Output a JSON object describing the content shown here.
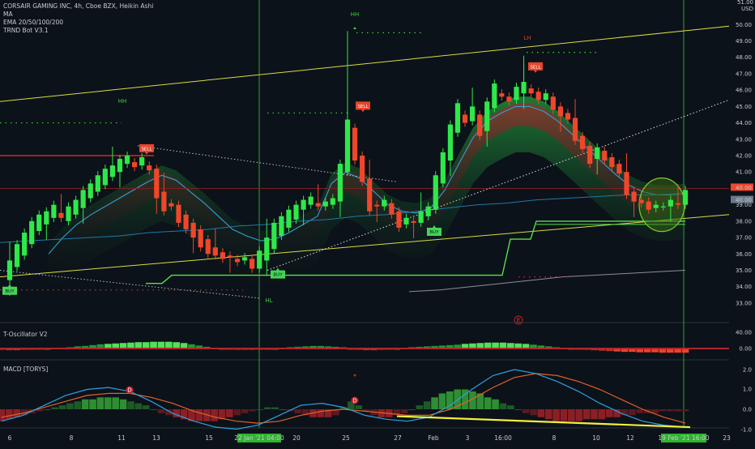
{
  "header": {
    "symbol_line": "CORSAIR GAMING INC, 4h, Cboe BZX, Heikin Ashi",
    "indicators": [
      "MA",
      "EMA 20/50/100/200",
      "TRND Bot V3.1"
    ]
  },
  "axis": {
    "currency": "USD",
    "y_top": "51.00"
  },
  "panes": {
    "oscillator_title": "T-Oscillator V2",
    "macd_title": "MACD [TORYS]"
  },
  "markers": {
    "hh_left": "HH",
    "hh_mid": "HH",
    "lh": "LH",
    "hl": "HL",
    "e_marker": "E",
    "d_left": "D",
    "d_mid": "D",
    "sell": "SELL",
    "buy": "BUY"
  },
  "date_flags": {
    "left": "22 Jan '21 04:00",
    "right": "19 Feb '21 16:00"
  },
  "price_flags": {
    "upper": "40.00",
    "lower": "40.00"
  },
  "colors": {
    "background": "#0c1219",
    "bull": "#2ee84a",
    "bear": "#f0462a",
    "ema_fast": "#29a3d9",
    "trend_line": "#d8dc45",
    "support_green": "#58e04a",
    "ribbon_red": "#c4202c",
    "ribbon_green": "#24b63c"
  },
  "chart_data": [
    {
      "type": "candlestick",
      "title": "CORSAIR GAMING INC, 4h, Cboe BZX, Heikin Ashi",
      "y_ticks": [
        "51.00",
        "50.00",
        "49.00",
        "48.00",
        "47.00",
        "46.00",
        "45.00",
        "44.00",
        "43.00",
        "42.00",
        "41.00",
        "40.00",
        "39.00",
        "38.00",
        "37.00",
        "36.00",
        "35.00",
        "34.00",
        "33.00"
      ],
      "ylim": [
        32.8,
        51.3
      ],
      "x_ticks": [
        "6",
        "8",
        "11",
        "13",
        "15",
        "18",
        "20",
        "22 Jan '21 04:00",
        "25",
        "27",
        "Feb",
        "3",
        "16:00",
        "8",
        "10",
        "12",
        "17",
        "19 Feb '21 16:00",
        "23"
      ],
      "candles": [
        {
          "o": 34.4,
          "c": 35.6
        },
        {
          "o": 35.2,
          "c": 36.6
        },
        {
          "o": 35.9,
          "c": 37.3
        },
        {
          "o": 36.6,
          "c": 38.0
        },
        {
          "o": 37.4,
          "c": 38.4
        },
        {
          "o": 37.8,
          "c": 38.6
        },
        {
          "o": 38.2,
          "c": 39.0
        },
        {
          "o": 38.5,
          "c": 38.2
        },
        {
          "o": 38.0,
          "c": 38.9
        },
        {
          "o": 38.4,
          "c": 39.3
        },
        {
          "o": 38.8,
          "c": 39.9
        },
        {
          "o": 39.4,
          "c": 40.3
        },
        {
          "o": 39.8,
          "c": 40.8
        },
        {
          "o": 40.2,
          "c": 41.2
        },
        {
          "o": 40.7,
          "c": 41.4
        },
        {
          "o": 41.0,
          "c": 41.8
        },
        {
          "o": 41.5,
          "c": 42.0
        },
        {
          "o": 41.6,
          "c": 41.3
        },
        {
          "o": 41.4,
          "c": 41.9
        },
        {
          "o": 41.4,
          "c": 41.1
        },
        {
          "o": 41.2,
          "c": 39.4
        },
        {
          "o": 39.8,
          "c": 38.6
        },
        {
          "o": 39.1,
          "c": 38.9
        },
        {
          "o": 39.0,
          "c": 37.9
        },
        {
          "o": 38.4,
          "c": 37.5
        },
        {
          "o": 37.9,
          "c": 37.0
        },
        {
          "o": 37.5,
          "c": 36.4
        },
        {
          "o": 36.9,
          "c": 36.0
        },
        {
          "o": 36.4,
          "c": 35.9
        },
        {
          "o": 36.1,
          "c": 35.7
        },
        {
          "o": 35.9,
          "c": 35.8
        },
        {
          "o": 35.7,
          "c": 35.5
        },
        {
          "o": 35.6,
          "c": 35.8
        },
        {
          "o": 35.7,
          "c": 35.1
        },
        {
          "o": 35.1,
          "c": 36.2
        },
        {
          "o": 35.6,
          "c": 37.0
        },
        {
          "o": 36.3,
          "c": 37.9
        },
        {
          "o": 37.1,
          "c": 38.3
        },
        {
          "o": 37.6,
          "c": 38.7
        },
        {
          "o": 38.1,
          "c": 39.0
        },
        {
          "o": 38.7,
          "c": 39.3
        },
        {
          "o": 39.0,
          "c": 39.5
        },
        {
          "o": 39.1,
          "c": 38.9
        },
        {
          "o": 38.9,
          "c": 39.2
        },
        {
          "o": 39.0,
          "c": 39.4
        },
        {
          "o": 39.2,
          "c": 41.5
        },
        {
          "o": 41.0,
          "c": 44.2
        },
        {
          "o": 43.7,
          "c": 41.7
        },
        {
          "o": 42.0,
          "c": 40.4
        },
        {
          "o": 40.6,
          "c": 38.6
        },
        {
          "o": 39.0,
          "c": 38.9
        },
        {
          "o": 38.9,
          "c": 39.3
        },
        {
          "o": 39.1,
          "c": 38.4
        },
        {
          "o": 38.6,
          "c": 37.6
        },
        {
          "o": 37.8,
          "c": 38.2
        },
        {
          "o": 38.0,
          "c": 37.9
        },
        {
          "o": 37.9,
          "c": 38.6
        },
        {
          "o": 38.3,
          "c": 38.9
        },
        {
          "o": 38.7,
          "c": 40.8
        },
        {
          "o": 40.3,
          "c": 42.2
        },
        {
          "o": 41.7,
          "c": 43.9
        },
        {
          "o": 43.4,
          "c": 45.2
        },
        {
          "o": 44.5,
          "c": 44.0
        },
        {
          "o": 44.1,
          "c": 45.0
        },
        {
          "o": 44.5,
          "c": 43.2
        },
        {
          "o": 43.5,
          "c": 45.3
        },
        {
          "o": 44.9,
          "c": 46.4
        },
        {
          "o": 45.8,
          "c": 45.6
        },
        {
          "o": 45.6,
          "c": 45.3
        },
        {
          "o": 45.4,
          "c": 46.2
        },
        {
          "o": 45.8,
          "c": 46.5
        },
        {
          "o": 46.1,
          "c": 45.8
        },
        {
          "o": 45.9,
          "c": 45.4
        },
        {
          "o": 45.4,
          "c": 45.8
        },
        {
          "o": 45.6,
          "c": 44.8
        },
        {
          "o": 45.0,
          "c": 44.4
        },
        {
          "o": 44.6,
          "c": 44.2
        },
        {
          "o": 44.3,
          "c": 42.9
        },
        {
          "o": 43.2,
          "c": 42.4
        },
        {
          "o": 42.6,
          "c": 41.5
        },
        {
          "o": 41.8,
          "c": 42.5
        },
        {
          "o": 42.3,
          "c": 41.7
        },
        {
          "o": 41.9,
          "c": 41.3
        },
        {
          "o": 41.5,
          "c": 40.9
        },
        {
          "o": 41.0,
          "c": 39.6
        },
        {
          "o": 39.8,
          "c": 39.2
        },
        {
          "o": 39.3,
          "c": 39.1
        },
        {
          "o": 39.2,
          "c": 38.7
        },
        {
          "o": 38.8,
          "c": 39.0
        },
        {
          "o": 38.9,
          "c": 38.9
        },
        {
          "o": 38.9,
          "c": 39.3
        },
        {
          "o": 39.1,
          "c": 39.0
        },
        {
          "o": 39.0,
          "c": 39.9
        }
      ],
      "ema_fast": [
        36.0,
        37.0,
        37.8,
        38.4,
        38.9,
        39.4,
        39.9,
        40.4,
        40.8,
        40.5,
        39.8,
        39.1,
        38.3,
        37.5,
        37.1,
        36.8,
        36.9,
        37.3,
        37.8,
        38.3,
        40.3,
        41.0,
        40.6,
        39.8,
        39.0,
        38.6,
        38.5,
        38.8,
        39.9,
        41.5,
        43.1,
        44.1,
        44.6,
        45.0,
        45.0,
        44.7,
        44.1,
        43.3,
        42.5,
        41.7,
        40.9,
        40.2,
        39.8,
        39.6,
        39.6,
        39.7
      ],
      "sma_slow": [
        36.7,
        36.8,
        36.9,
        37.0,
        37.1,
        37.3,
        37.4,
        37.5,
        37.7,
        37.8,
        38.0,
        38.1,
        38.3,
        38.4,
        38.6,
        38.8,
        39.0,
        39.1,
        39.3,
        39.4,
        39.5,
        39.6,
        39.6,
        39.7
      ],
      "gray_ma": [
        37.5,
        37.6,
        37.8,
        38.0,
        38.2,
        38.4,
        38.5,
        38.6,
        38.7,
        38.8
      ],
      "resistance_line": {
        "from": 45.3,
        "to": 49.9
      },
      "support_line": {
        "from": 34.6,
        "to": 38.4
      },
      "horizontal_levels": [
        {
          "value": 42.0,
          "label": ""
        },
        {
          "value": 40.0,
          "label": "40.00"
        }
      ]
    },
    {
      "type": "bar",
      "title": "T-Oscillator V2",
      "y_ticks": [
        "40.00",
        "0.00"
      ],
      "values": [
        -3,
        -4,
        -4,
        -3,
        -2,
        -1,
        0,
        1,
        2,
        3,
        5,
        6,
        8,
        10,
        11,
        12,
        13,
        14,
        15,
        15,
        16,
        16,
        16,
        15,
        13,
        10,
        7,
        4,
        1,
        -1,
        -2,
        -3,
        -3,
        -3,
        -2,
        -1,
        0,
        1,
        3,
        4,
        5,
        6,
        6,
        5,
        4,
        3,
        -1,
        -3,
        -4,
        -4,
        -3,
        -2,
        0,
        1,
        3,
        4,
        5,
        6,
        7,
        8,
        9,
        11,
        12,
        13,
        14,
        14,
        14,
        13,
        12,
        11,
        9,
        7,
        5,
        3,
        1,
        -1,
        -2,
        -3,
        -4,
        -5,
        -6,
        -7,
        -8,
        -8,
        -9,
        -9,
        -9,
        -10,
        -10,
        -10,
        -10
      ]
    },
    {
      "type": "bar",
      "title": "MACD [TORYS]",
      "y_ticks": [
        "2.0",
        "1.0",
        "0.0",
        "-1.0"
      ],
      "histogram": [
        -0.6,
        -0.5,
        -0.4,
        -0.3,
        -0.2,
        -0.1,
        0.0,
        0.1,
        0.2,
        0.3,
        0.4,
        0.5,
        0.5,
        0.6,
        0.6,
        0.6,
        0.5,
        0.4,
        0.3,
        0.2,
        0.0,
        -0.2,
        -0.3,
        -0.4,
        -0.5,
        -0.6,
        -0.6,
        -0.6,
        -0.6,
        -0.5,
        -0.4,
        -0.3,
        -0.2,
        -0.1,
        0.0,
        0.1,
        0.1,
        0.0,
        -0.1,
        -0.2,
        -0.3,
        -0.4,
        -0.4,
        -0.4,
        -0.3,
        0.1,
        0.4,
        0.2,
        -0.1,
        -0.3,
        -0.4,
        -0.4,
        -0.3,
        -0.2,
        0.0,
        0.2,
        0.4,
        0.6,
        0.8,
        0.9,
        1.0,
        1.0,
        0.9,
        0.8,
        0.6,
        0.5,
        0.3,
        0.2,
        0.0,
        -0.2,
        -0.3,
        -0.4,
        -0.5,
        -0.6,
        -0.6,
        -0.6,
        -0.6,
        -0.5,
        -0.5,
        -0.5,
        -0.4,
        -0.4,
        -0.3,
        -0.3,
        -0.2,
        -0.2,
        -0.2,
        -0.1,
        -0.1,
        -0.1,
        -0.1
      ],
      "macd_line": [
        -0.6,
        -0.3,
        0.2,
        0.7,
        1.0,
        1.1,
        0.9,
        0.4,
        -0.2,
        -0.6,
        -0.9,
        -1.0,
        -0.8,
        -0.3,
        0.2,
        0.3,
        0.1,
        -0.3,
        -0.5,
        -0.6,
        -0.4,
        0.2,
        1.0,
        1.7,
        2.0,
        1.8,
        1.4,
        0.9,
        0.3,
        -0.2,
        -0.6,
        -0.8,
        -0.9
      ],
      "signal_line": [
        -0.4,
        -0.2,
        0.1,
        0.4,
        0.7,
        0.8,
        0.8,
        0.6,
        0.3,
        -0.1,
        -0.4,
        -0.6,
        -0.7,
        -0.6,
        -0.3,
        -0.1,
        0.0,
        -0.1,
        -0.2,
        -0.3,
        -0.3,
        0.0,
        0.5,
        1.1,
        1.6,
        1.8,
        1.7,
        1.4,
        1.0,
        0.5,
        0.0,
        -0.4,
        -0.7
      ],
      "divergence_line": {
        "from": -0.35,
        "to": -0.9
      }
    }
  ]
}
